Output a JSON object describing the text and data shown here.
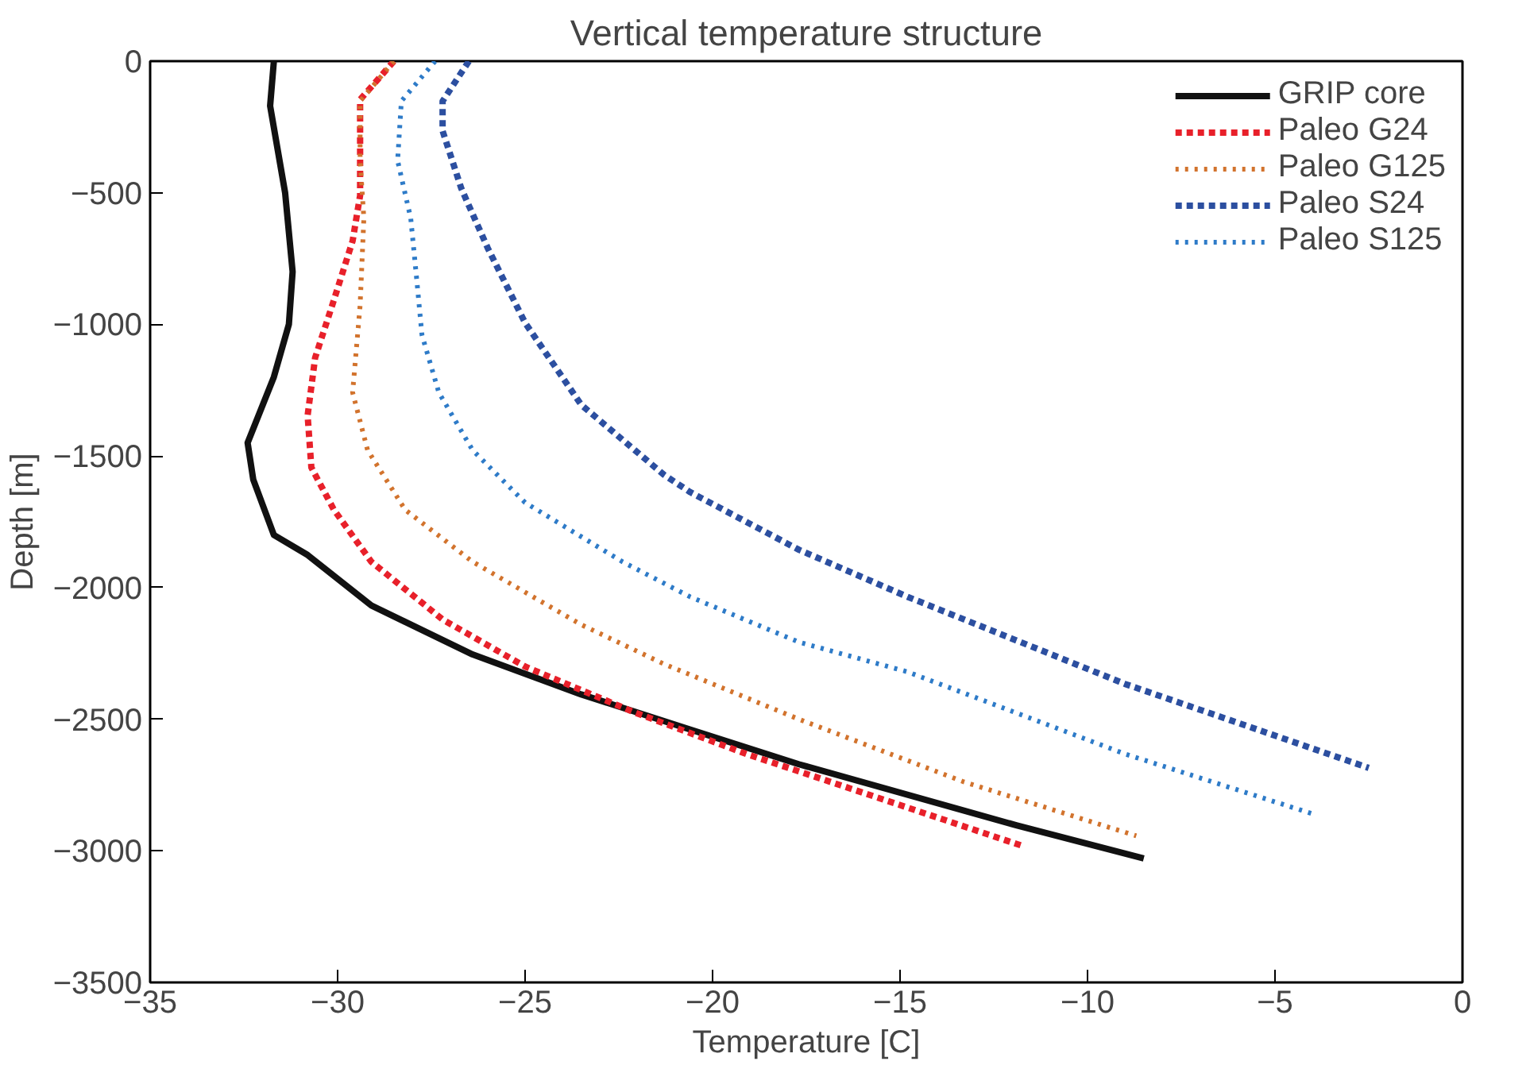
{
  "chart_data": {
    "type": "line",
    "title": "Vertical temperature structure",
    "xlabel": "Temperature [C]",
    "ylabel": "Depth [m]",
    "xlim": [
      -35,
      0
    ],
    "xticks": [
      -35,
      -30,
      -25,
      -20,
      -15,
      -10,
      -5,
      0
    ],
    "ylim": [
      -3500,
      0
    ],
    "yticks": [
      -3500,
      -3000,
      -2500,
      -2000,
      -1500,
      -1000,
      -500,
      0
    ],
    "grid": false,
    "legend": "top right",
    "marker": "none",
    "series": [
      {
        "name": "GRIP core",
        "color": "#111111",
        "line_style": "solid",
        "x": [
          -31.7,
          -31.8,
          -31.4,
          -31.2,
          -31.3,
          -31.7,
          -32.4,
          -32.25,
          -31.7,
          -30.8,
          -29.1,
          -26.4,
          -23.5,
          -20.6,
          -17.7,
          -11.9,
          -8.5
        ],
        "values": [
          0,
          -170,
          -500,
          -800,
          -1000,
          -1200,
          -1450,
          -1590,
          -1800,
          -1876,
          -2068,
          -2254,
          -2406,
          -2539,
          -2671,
          -2903,
          -3029
        ]
      },
      {
        "name": "Paleo G24",
        "color": "#e8202a",
        "line_style": "dashed",
        "x": [
          -28.5,
          -29.4,
          -29.4,
          -29.6,
          -30.1,
          -30.6,
          -30.8,
          -30.7,
          -30.1,
          -29.1,
          -27.2,
          -25.0,
          -22.1,
          -19.1,
          -17.7,
          -11.7
        ],
        "values": [
          0,
          -146,
          -510,
          -683,
          -908,
          -1127,
          -1346,
          -1544,
          -1704,
          -1902,
          -2121,
          -2300,
          -2473,
          -2632,
          -2698,
          -2983
        ]
      },
      {
        "name": "Paleo G125",
        "color": "#d2732d",
        "line_style": "dotted",
        "x": [
          -28.5,
          -29.4,
          -29.4,
          -29.3,
          -29.4,
          -29.6,
          -29.2,
          -28.2,
          -26.4,
          -23.5,
          -21.3,
          -17.7,
          -13.3,
          -8.7
        ],
        "values": [
          0,
          -152,
          -378,
          -597,
          -928,
          -1259,
          -1478,
          -1704,
          -1902,
          -2141,
          -2290,
          -2500,
          -2738,
          -2943
        ]
      },
      {
        "name": "Paleo S24",
        "color": "#2c4fa0",
        "line_style": "dashed",
        "x": [
          -26.5,
          -27.2,
          -27.2,
          -26.7,
          -26.0,
          -25.0,
          -23.5,
          -21.3,
          -20.6,
          -17.7,
          -14.8,
          -9.0,
          -2.5
        ],
        "values": [
          0,
          -152,
          -265,
          -484,
          -709,
          -994,
          -1306,
          -1571,
          -1637,
          -1856,
          -2035,
          -2366,
          -2685
        ]
      },
      {
        "name": "Paleo S125",
        "color": "#2e7bc8",
        "line_style": "dotted",
        "x": [
          -27.4,
          -28.3,
          -28.4,
          -28.05,
          -27.9,
          -27.75,
          -27.3,
          -26.4,
          -25.0,
          -22.4,
          -20.6,
          -17.7,
          -14.8,
          -9.0,
          -3.9
        ],
        "values": [
          0,
          -152,
          -378,
          -597,
          -815,
          -1041,
          -1259,
          -1478,
          -1677,
          -1902,
          -2035,
          -2207,
          -2320,
          -2632,
          -2864
        ]
      }
    ]
  }
}
